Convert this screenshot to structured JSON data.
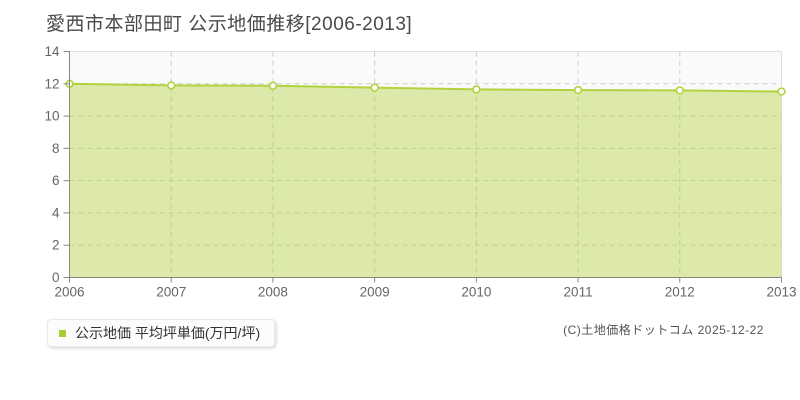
{
  "title": "愛西市本部田町 公示地価推移[2006-2013]",
  "legend": {
    "label": "公示地価 平均坪単価(万円/坪)",
    "swatch_color": "#a9cc33"
  },
  "copyright": "(C)土地価格ドットコム 2025-12-22",
  "chart_data": {
    "type": "area",
    "categories": [
      "2006",
      "2007",
      "2008",
      "2009",
      "2010",
      "2011",
      "2012",
      "2013"
    ],
    "series": [
      {
        "name": "公示地価 平均坪単価(万円/坪)",
        "values": [
          12.0,
          11.9,
          11.88,
          11.76,
          11.65,
          11.61,
          11.59,
          11.52
        ]
      }
    ],
    "title": "愛西市本部田町 公示地価推移[2006-2013]",
    "xlabel": "",
    "ylabel": "",
    "unit": "万円/坪",
    "ylim": [
      0,
      14
    ],
    "yticks": [
      0,
      2,
      4,
      6,
      8,
      10,
      12,
      14
    ],
    "grid": true,
    "legend_position": "bottom-left",
    "colors": {
      "line": "#b2d23e",
      "fill": "rgba(178,210,62,0.42)",
      "marker_fill": "#ffffff",
      "plot_bg": "#fafafa",
      "grid": "#cccccc",
      "axis": "#888888",
      "tick_text": "#666666",
      "border": "#e0e0e0"
    }
  }
}
